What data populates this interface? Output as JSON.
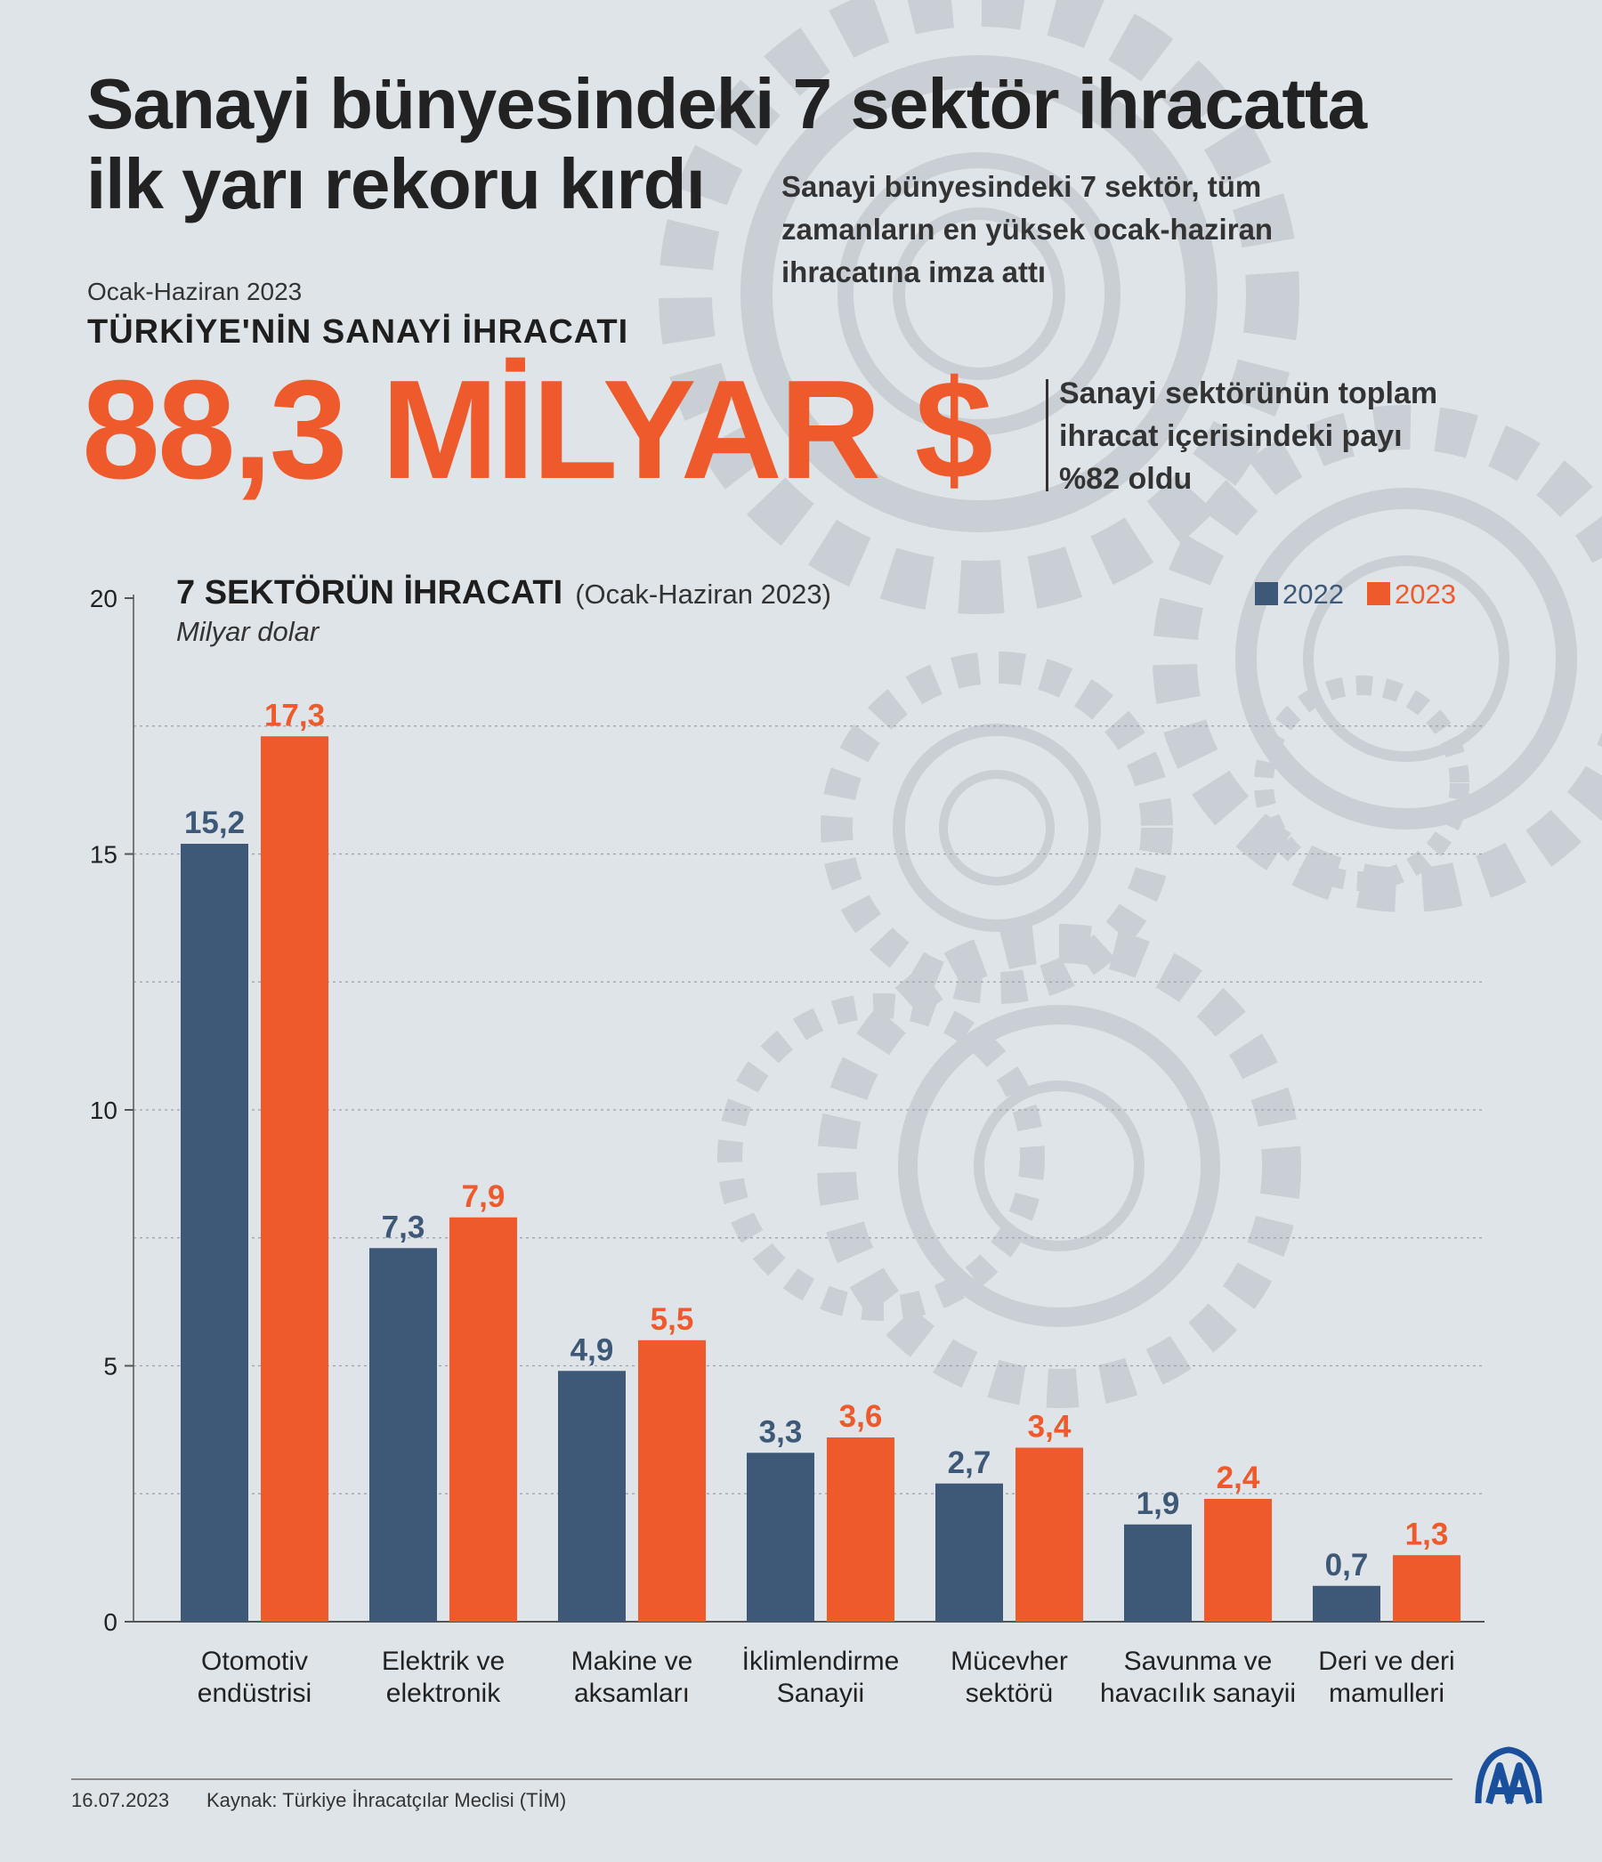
{
  "header": {
    "title_lines": [
      "Sanayi bünyesindeki 7 sektör ihracatta",
      "ilk yarı rekoru kırdı"
    ],
    "subtitle_lines": [
      "Sanayi bünyesindeki 7 sektör, tüm",
      "zamanların en yüksek ocak-haziran",
      "ihracatına imza attı"
    ]
  },
  "highlight": {
    "period": "Ocak-Haziran 2023",
    "heading": "TÜRKİYE'NİN SANAYİ İHRACATI",
    "value": "88,3 MİLYAR $",
    "share_note_lines": [
      "Sanayi sektörünün toplam",
      "ihracat içerisindeki payı",
      "%82 oldu"
    ]
  },
  "chart_data": {
    "type": "bar",
    "title": "7 SEKTÖRÜN İHRACATI",
    "title_suffix": "(Ocak-Haziran 2023)",
    "unit": "Milyar dolar",
    "categories": [
      [
        "Otomotiv",
        "endüstrisi"
      ],
      [
        "Elektrik ve",
        "elektronik"
      ],
      [
        "Makine ve",
        "aksamları"
      ],
      [
        "İklimlendirme",
        "Sanayii"
      ],
      [
        "Mücevher",
        "sektörü"
      ],
      [
        "Savunma ve",
        "havacılık sanayii"
      ],
      [
        "Deri ve deri",
        "mamulleri"
      ]
    ],
    "series": [
      {
        "name": "2022",
        "color": "#3e5878",
        "values": [
          15.2,
          7.3,
          4.9,
          3.3,
          2.7,
          1.9,
          0.7
        ],
        "labels": [
          "15,2",
          "7,3",
          "4,9",
          "3,3",
          "2,7",
          "1,9",
          "0,7"
        ]
      },
      {
        "name": "2023",
        "color": "#ee5a2c",
        "values": [
          17.3,
          7.9,
          5.5,
          3.6,
          3.4,
          2.4,
          1.3
        ],
        "labels": [
          "17,3",
          "7,9",
          "5,5",
          "3,6",
          "3,4",
          "2,4",
          "1,3"
        ]
      }
    ],
    "ylim": [
      0,
      20
    ],
    "yticks": [
      0,
      5,
      10,
      15,
      20
    ],
    "legend_position": "top-right",
    "grid": true
  },
  "footer": {
    "date": "16.07.2023",
    "source": "Kaynak: Türkiye İhracatçılar Meclisi (TİM)",
    "logo_name": "aa-logo"
  }
}
